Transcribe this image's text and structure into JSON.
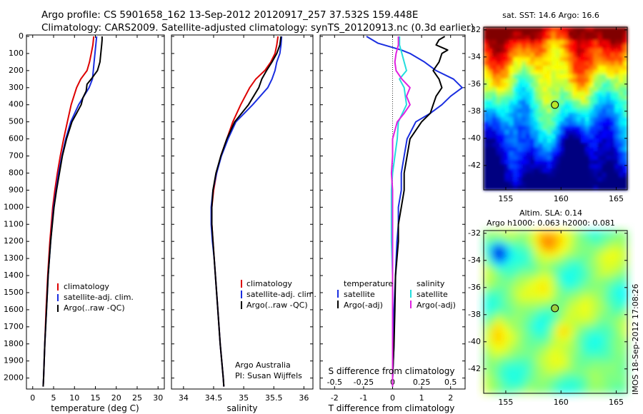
{
  "header": {
    "line1": "Argo profile: CS 5901658_162 13-Sep-2012 20120917_257 37.532S 159.448E",
    "line2": "Climatology: CARS2009. Satellite-adjusted climatology: synTS_20120913.nc (0.3d earlier)"
  },
  "colors": {
    "climatology": "#dd0000",
    "satellite": "#1a2ee0",
    "argo": "#000000",
    "salinity_satellite": "#22dddd",
    "salinity_argo": "#e020e0"
  },
  "depth_axis": {
    "ticks": [
      0,
      100,
      200,
      300,
      400,
      500,
      600,
      700,
      800,
      900,
      1000,
      1100,
      1200,
      1300,
      1400,
      1500,
      1600,
      1700,
      1800,
      1900,
      2000
    ],
    "range": [
      0,
      2060
    ]
  },
  "chart_data": [
    {
      "type": "line",
      "xlabel": "temperature (deg C)",
      "xlim": [
        -1.5,
        31.5
      ],
      "xticks": [
        0,
        5,
        10,
        15,
        20,
        25,
        30
      ],
      "ylim": [
        0,
        2060
      ],
      "y_reversed": true,
      "legend": [
        "climatology",
        "satellite-adj. clim.",
        "Argo(..raw -QC)"
      ],
      "series": [
        {
          "name": "climatology",
          "color": "#dd0000",
          "depth": [
            0,
            50,
            100,
            150,
            200,
            250,
            300,
            400,
            500,
            600,
            700,
            800,
            900,
            1000,
            1200,
            1400,
            1600,
            1800,
            2000,
            2050
          ],
          "values": [
            14.6,
            14.4,
            14.0,
            13.6,
            13.0,
            11.5,
            10.5,
            9.2,
            8.3,
            7.4,
            6.6,
            5.9,
            5.3,
            4.8,
            4.1,
            3.6,
            3.2,
            2.9,
            2.6,
            2.5
          ]
        },
        {
          "name": "satellite-adj. clim.",
          "color": "#1a2ee0",
          "depth": [
            0,
            50,
            100,
            150,
            200,
            250,
            300,
            400,
            500,
            600,
            700,
            800,
            900,
            1000,
            1200,
            1400,
            1600,
            1800,
            2000,
            2050
          ],
          "values": [
            15.3,
            15.1,
            14.9,
            14.7,
            14.5,
            14.3,
            13.5,
            11.0,
            9.1,
            7.9,
            7.0,
            6.2,
            5.6,
            5.0,
            4.3,
            3.7,
            3.3,
            2.9,
            2.6,
            2.5
          ]
        },
        {
          "name": "Argo(..raw -QC)",
          "color": "#000000",
          "depth": [
            0,
            20,
            50,
            100,
            150,
            200,
            250,
            280,
            320,
            360,
            400,
            450,
            500,
            600,
            700,
            800,
            900,
            1000,
            1200,
            1400,
            1600,
            1800,
            2000,
            2050
          ],
          "values": [
            16.6,
            16.6,
            16.5,
            16.3,
            16.1,
            15.5,
            14.0,
            13.0,
            12.8,
            12.0,
            11.6,
            10.5,
            9.4,
            8.1,
            7.1,
            6.4,
            5.7,
            5.1,
            4.3,
            3.7,
            3.3,
            2.9,
            2.6,
            2.5
          ]
        }
      ]
    },
    {
      "type": "line",
      "xlabel": "salinity",
      "xlim": [
        33.8,
        36.15
      ],
      "xticks": [
        34,
        34.5,
        35,
        35.5,
        36
      ],
      "xtick_labels": [
        "34",
        "34.5",
        "35",
        "35.5",
        "36"
      ],
      "ylim": [
        0,
        2060
      ],
      "y_reversed": true,
      "legend": [
        "climatology",
        "satellite-adj. clim.",
        "Argo(..raw -QC)"
      ],
      "annotation": [
        "Argo Australia",
        "PI: Susan Wijffels"
      ],
      "series": [
        {
          "name": "climatology",
          "color": "#dd0000",
          "depth": [
            0,
            50,
            100,
            150,
            200,
            250,
            300,
            400,
            500,
            600,
            700,
            800,
            900,
            1000,
            1100,
            1200,
            1300,
            1400,
            1500,
            1600,
            1800,
            2000,
            2050
          ],
          "values": [
            35.57,
            35.55,
            35.52,
            35.45,
            35.35,
            35.2,
            35.1,
            34.95,
            34.82,
            34.72,
            34.62,
            34.55,
            34.5,
            34.47,
            34.47,
            34.49,
            34.51,
            34.53,
            34.55,
            34.57,
            34.61,
            34.66,
            34.67
          ]
        },
        {
          "name": "satellite-adj. clim.",
          "color": "#1a2ee0",
          "depth": [
            0,
            50,
            100,
            150,
            200,
            250,
            300,
            400,
            500,
            600,
            700,
            800,
            900,
            1000,
            1100,
            1200,
            1300,
            1400,
            1500,
            1600,
            1800,
            2000,
            2050
          ],
          "values": [
            35.63,
            35.62,
            35.6,
            35.55,
            35.52,
            35.47,
            35.4,
            35.15,
            34.87,
            34.74,
            34.63,
            34.55,
            34.49,
            34.46,
            34.46,
            34.48,
            34.51,
            34.53,
            34.55,
            34.57,
            34.61,
            34.66,
            34.67
          ]
        },
        {
          "name": "Argo(..raw -QC)",
          "color": "#000000",
          "depth": [
            0,
            50,
            100,
            150,
            200,
            250,
            300,
            400,
            500,
            600,
            700,
            800,
            900,
            1000,
            1100,
            1200,
            1300,
            1400,
            1500,
            1600,
            1800,
            2000,
            2050
          ],
          "values": [
            35.62,
            35.6,
            35.55,
            35.47,
            35.38,
            35.3,
            35.25,
            35.08,
            34.85,
            34.72,
            34.62,
            34.54,
            34.49,
            34.47,
            34.47,
            34.49,
            34.51,
            34.53,
            34.55,
            34.57,
            34.61,
            34.66,
            34.67
          ]
        }
      ]
    },
    {
      "type": "line",
      "xlabel": "T difference from climatology",
      "x2label": "S difference from climatology",
      "xlim": [
        -2.5,
        2.5
      ],
      "xticks": [
        -2,
        -1,
        0,
        1,
        2
      ],
      "x2lim": [
        -0.625,
        0.625
      ],
      "x2ticks": [
        -0.5,
        -0.25,
        0,
        0.25,
        0.5
      ],
      "x2tick_labels": [
        "-0.5",
        "-0.25",
        "0",
        "0.25",
        "0.5"
      ],
      "ylim": [
        0,
        2060
      ],
      "y_reversed": true,
      "legend_groups": [
        {
          "title": "temperature",
          "items": [
            "satellite",
            "Argo(-adj)"
          ]
        },
        {
          "title": "salinity",
          "items": [
            "satellite",
            "Argo(-adj)"
          ]
        }
      ],
      "series": [
        {
          "name": "satellite",
          "group": "temperature",
          "color": "#1a2ee0",
          "depth": [
            0,
            40,
            80,
            100,
            150,
            200,
            250,
            300,
            350,
            400,
            450,
            500,
            600,
            700,
            800,
            900,
            1000,
            1100,
            1200,
            1400,
            1600,
            1800,
            2000,
            2050
          ],
          "values": [
            -0.9,
            -0.5,
            0.3,
            0.6,
            1.1,
            1.5,
            2.1,
            2.4,
            2.0,
            1.7,
            1.3,
            0.8,
            0.5,
            0.4,
            0.3,
            0.3,
            0.2,
            0.2,
            0.15,
            0.1,
            0.05,
            0.05,
            0.0,
            0.0
          ]
        },
        {
          "name": "Argo(-adj)",
          "group": "temperature",
          "color": "#000000",
          "depth": [
            0,
            20,
            50,
            80,
            100,
            150,
            200,
            250,
            300,
            350,
            400,
            450,
            500,
            600,
            700,
            800,
            900,
            1000,
            1100,
            1200,
            1400,
            1600,
            1800,
            2000,
            2050
          ],
          "values": [
            1.8,
            1.6,
            1.5,
            1.9,
            1.7,
            1.6,
            1.4,
            1.6,
            1.7,
            1.5,
            1.4,
            1.3,
            1.0,
            0.6,
            0.5,
            0.4,
            0.4,
            0.3,
            0.2,
            0.2,
            0.1,
            0.08,
            0.05,
            0.0,
            0.0
          ]
        },
        {
          "name": "satellite",
          "group": "salinity",
          "color": "#22dddd",
          "depth": [
            0,
            50,
            100,
            150,
            200,
            250,
            300,
            400,
            500,
            600,
            700,
            800,
            900,
            1000,
            1100,
            1200,
            1400,
            1600,
            1800,
            2000,
            2050
          ],
          "values": [
            0.06,
            0.06,
            0.08,
            0.1,
            0.12,
            0.06,
            0.1,
            0.12,
            0.05,
            0.04,
            0.02,
            0.0,
            -0.01,
            -0.01,
            -0.01,
            -0.01,
            0.0,
            0.0,
            0.0,
            0.0,
            0.0
          ]
        },
        {
          "name": "Argo(-adj)",
          "group": "salinity",
          "color": "#e020e0",
          "depth": [
            0,
            50,
            100,
            150,
            200,
            250,
            300,
            350,
            400,
            450,
            500,
            600,
            700,
            800,
            900,
            1000,
            1100,
            1200,
            1400,
            1600,
            1800,
            2000,
            2050
          ],
          "values": [
            0.05,
            0.05,
            0.03,
            0.02,
            0.03,
            0.08,
            0.15,
            0.12,
            0.15,
            0.1,
            0.04,
            0.0,
            0.0,
            -0.01,
            0.0,
            0.0,
            0.0,
            0.0,
            0.0,
            0.0,
            0.0,
            0.0,
            0.0
          ]
        }
      ]
    },
    {
      "type": "heatmap",
      "title": "sat. SST: 14.6  Argo: 16.6",
      "xlim": [
        153,
        166
      ],
      "ylim": [
        -43.8,
        -31.8
      ],
      "xticks": [
        155,
        160,
        165
      ],
      "yticks": [
        -42,
        -40,
        -38,
        -36,
        -34,
        -32
      ],
      "marker": {
        "lon": 159.448,
        "lat": -37.532
      }
    },
    {
      "type": "heatmap",
      "title": "Altim. SLA: 0.14",
      "subtitle": "Argo h1000: 0.063 h2000: 0.081",
      "xlim": [
        153,
        166
      ],
      "ylim": [
        -43.8,
        -31.8
      ],
      "xticks": [
        155,
        160,
        165
      ],
      "yticks": [
        -42,
        -40,
        -38,
        -36,
        -34,
        -32
      ],
      "marker": {
        "lon": 159.448,
        "lat": -37.532
      }
    }
  ],
  "footer": {
    "stamp": "IMOS 18-Sep-2012 17:08:26"
  }
}
